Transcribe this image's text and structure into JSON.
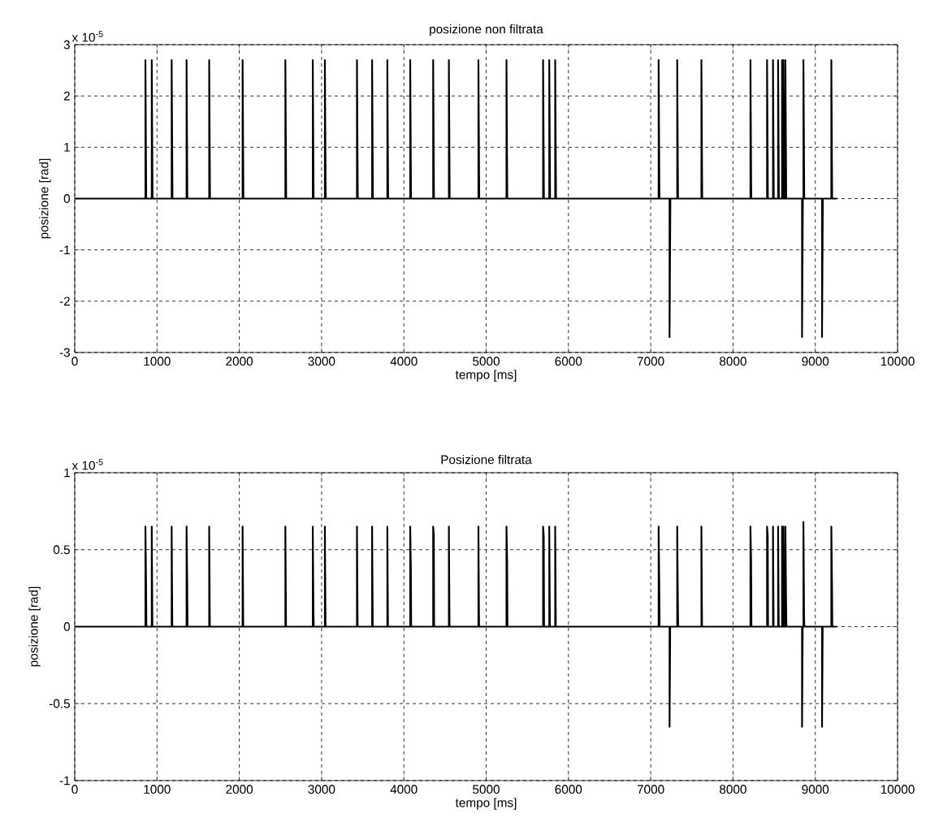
{
  "chart_data": [
    {
      "type": "line",
      "title": "posizione non filtrata",
      "xlabel": "tempo [ms]",
      "ylabel": "posizione [rad]",
      "annotations": [
        "x 10$^{-5}$"
      ],
      "color": "#000000",
      "grid": true,
      "line_style": "solid",
      "xlim": [
        0,
        10000
      ],
      "ylim": [
        -3,
        3
      ],
      "xticks": [
        0,
        1000,
        2000,
        3000,
        4000,
        5000,
        6000,
        7000,
        8000,
        9000,
        10000
      ],
      "yticks": [
        -3,
        -2,
        -1,
        0,
        1,
        2,
        3
      ],
      "x": [
        0,
        859,
        859,
        869,
        936,
        936,
        946,
        1178,
        1178,
        1188,
        1359,
        1359,
        1369,
        1634,
        1634,
        1644,
        2040,
        2040,
        2050,
        2560,
        2560,
        2570,
        2893,
        2893,
        2903,
        3040,
        3040,
        3050,
        3430,
        3430,
        3440,
        3614,
        3614,
        3624,
        3799,
        3799,
        3809,
        4077,
        4077,
        4087,
        4356,
        4356,
        4366,
        4547,
        4547,
        4557,
        4906,
        4906,
        4916,
        5247,
        5247,
        5257,
        5692,
        5692,
        5702,
        5767,
        5767,
        5777,
        5839,
        5839,
        5849,
        7096,
        7096,
        7106,
        7229,
        7229,
        7239,
        7322,
        7322,
        7332,
        7616,
        7616,
        7626,
        8212,
        8212,
        8222,
        8414,
        8414,
        8424,
        8486,
        8486,
        8496,
        8548,
        8548,
        8558,
        8596,
        8596,
        8606,
        8613,
        8613,
        8623,
        8637,
        8637,
        8647,
        8839,
        8839,
        8849,
        8856,
        8856,
        8866,
        9082,
        9082,
        9092,
        9195,
        9195,
        9205,
        9262
      ],
      "values": [
        0,
        0,
        2.7,
        0,
        0,
        2.7,
        0,
        0,
        2.7,
        0,
        0,
        2.7,
        0,
        0,
        2.7,
        0,
        0,
        2.7,
        0,
        0,
        2.7,
        0,
        0,
        2.7,
        0,
        0,
        2.7,
        0,
        0,
        2.7,
        0,
        0,
        2.7,
        0,
        0,
        2.7,
        0,
        0,
        2.7,
        0,
        0,
        2.7,
        0,
        0,
        2.7,
        0,
        0,
        2.7,
        0,
        0,
        2.7,
        0,
        0,
        2.7,
        0,
        0,
        2.7,
        0,
        0,
        2.7,
        0,
        0,
        2.7,
        0,
        0,
        -2.7,
        0,
        0,
        2.7,
        0,
        0,
        2.7,
        0,
        0,
        2.7,
        0,
        0,
        2.7,
        0,
        0,
        2.7,
        0,
        0,
        2.7,
        0,
        0,
        2.7,
        0,
        0,
        2.7,
        0,
        0,
        2.7,
        0,
        0,
        -2.7,
        0,
        0,
        2.7,
        0,
        0,
        -2.7,
        0,
        0,
        2.7,
        0,
        0
      ]
    },
    {
      "type": "line",
      "title": "Posizione filtrata",
      "xlabel": "tempo [ms]",
      "ylabel": "posizione [rad]",
      "annotations": [
        "x 10$^{-5}$"
      ],
      "color": "#000000",
      "grid": true,
      "line_style": "solid",
      "xlim": [
        0,
        10000
      ],
      "ylim": [
        -1,
        1
      ],
      "xticks": [
        0,
        1000,
        2000,
        3000,
        4000,
        5000,
        6000,
        7000,
        8000,
        9000,
        10000
      ],
      "yticks": [
        -1,
        -0.5,
        0,
        0.5,
        1
      ],
      "x": [
        0,
        859,
        859,
        867,
        871,
        936,
        936,
        944,
        948,
        1178,
        1178,
        1186,
        1190,
        1359,
        1359,
        1367,
        1371,
        1634,
        1634,
        1642,
        1646,
        2040,
        2040,
        2048,
        2052,
        2560,
        2560,
        2568,
        2572,
        2893,
        2893,
        2901,
        2905,
        3040,
        3040,
        3048,
        3052,
        3430,
        3430,
        3438,
        3442,
        3614,
        3614,
        3622,
        3626,
        3799,
        3799,
        3807,
        3811,
        4077,
        4077,
        4085,
        4089,
        4356,
        4356,
        4364,
        4368,
        4547,
        4547,
        4555,
        4559,
        4906,
        4906,
        4914,
        4918,
        5247,
        5247,
        5255,
        5259,
        5692,
        5692,
        5700,
        5704,
        5767,
        5767,
        5775,
        5779,
        5839,
        5839,
        5847,
        5851,
        7096,
        7096,
        7104,
        7108,
        7229,
        7229,
        7237,
        7241,
        7322,
        7322,
        7330,
        7334,
        7616,
        7616,
        7624,
        7628,
        8212,
        8212,
        8220,
        8224,
        8414,
        8414,
        8422,
        8426,
        8486,
        8486,
        8494,
        8498,
        8548,
        8548,
        8556,
        8560,
        8596,
        8596,
        8604,
        8608,
        8613,
        8613,
        8621,
        8625,
        8637,
        8637,
        8645,
        8649,
        8839,
        8839,
        8847,
        8851,
        8856,
        8856,
        8864,
        8868,
        9082,
        9082,
        9090,
        9094,
        9195,
        9195,
        9203,
        9207,
        9262
      ],
      "values": [
        0,
        0,
        0.65,
        0.29,
        0,
        0,
        0.65,
        0,
        0,
        0,
        0.65,
        0,
        0,
        0,
        0.65,
        0.29,
        0,
        0,
        0.65,
        0,
        0,
        0,
        0.65,
        0,
        0,
        0,
        0.65,
        0,
        0,
        0,
        0.65,
        0.1,
        0,
        0,
        0.65,
        0,
        0,
        0,
        0.65,
        0,
        0,
        0,
        0.65,
        0,
        0,
        0,
        0.65,
        0,
        0,
        0,
        0.65,
        0.38,
        0,
        0,
        0.65,
        0.59,
        0,
        0,
        0.65,
        0,
        0,
        0,
        0.65,
        0,
        0,
        0,
        0.65,
        0.43,
        0,
        0,
        0.65,
        0.59,
        0,
        0,
        0.65,
        0,
        0,
        0,
        0.65,
        0,
        0,
        0,
        0.65,
        0.28,
        0,
        0,
        -0.65,
        0,
        0,
        0,
        0.65,
        0.17,
        0,
        0,
        0.65,
        0,
        0,
        0,
        0.65,
        0.43,
        0,
        0,
        0.65,
        0.59,
        0,
        0,
        0.65,
        0,
        0,
        0,
        0.65,
        0,
        0,
        0,
        0.65,
        0,
        0,
        0,
        0.65,
        0,
        0,
        0,
        0.65,
        0.17,
        0,
        0,
        -0.65,
        0,
        0,
        0,
        0.68,
        0.06,
        0,
        0,
        -0.65,
        0,
        0,
        0,
        0.65,
        0.28,
        0,
        0
      ]
    }
  ]
}
